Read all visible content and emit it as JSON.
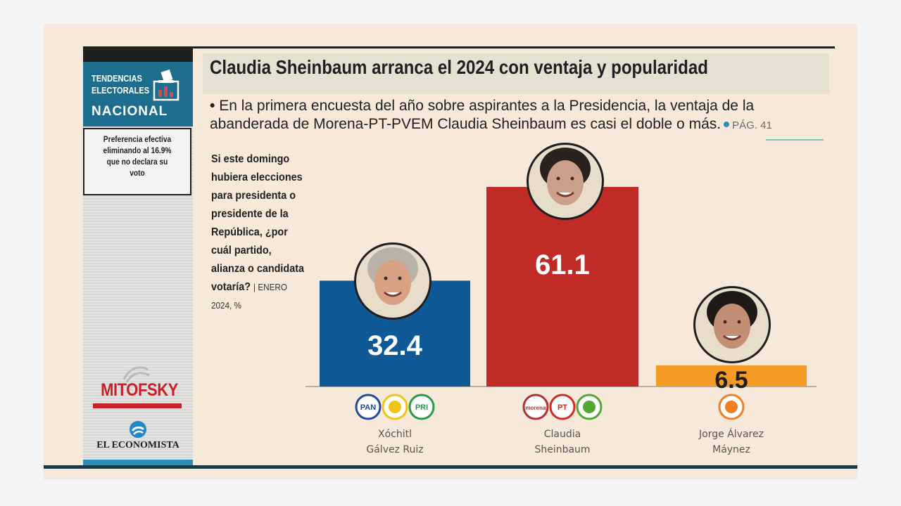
{
  "brand": {
    "line1": "TENDENCIAS",
    "line2": "ELECTORALES",
    "line3": "NACIONAL",
    "icon": "ballot-box-icon"
  },
  "note": {
    "line1": "Preferencia efectiva",
    "line2": "eliminando al 16.9%",
    "line3": "que no declara su",
    "line4": "voto"
  },
  "pollster": "MITOFSKY",
  "publisher": "EL ECONOMISTA",
  "headline": "Claudia Sheinbaum arranca el 2024 con ventaja y popularidad",
  "lede": {
    "bullet": "•",
    "line1": "En la primera encuesta del año sobre aspirantes a la Presidencia, la ventaja de la",
    "line2": "abanderada de Morena-PT-PVEM Claudia Sheinbaum es casi el doble o más.",
    "page_ref": "PÁG. 41"
  },
  "question": {
    "text": "Si este domingo hubiera elecciones para presidenta o presidente de la República, ¿por cuál partido, alianza o candidata votaría?",
    "sub": "| ENERO 2024, %"
  },
  "colors": {
    "xochitl": "#0f5a96",
    "claudia": "#c02b25",
    "jorge": "#f39b25",
    "accent": "#1d6e8e"
  },
  "chart_data": {
    "type": "bar",
    "categories": [
      "Xóchitl Gálvez Ruiz",
      "Claudia Sheinbaum",
      "Jorge Álvarez Máynez"
    ],
    "values": [
      32.4,
      61.1,
      6.5
    ],
    "labels": [
      "32.4",
      "61.1",
      "6.5"
    ],
    "name_lines": [
      [
        "Xóchitl",
        "Gálvez Ruiz"
      ],
      [
        "Claudia",
        "Sheinbaum"
      ],
      [
        "Jorge Álvarez",
        "Máynez"
      ]
    ],
    "parties": [
      [
        "PAN",
        "PRD",
        "PRI"
      ],
      [
        "morena",
        "PT",
        "PVEM"
      ],
      [
        "MC"
      ]
    ],
    "title": "",
    "xlabel": "",
    "ylabel": "",
    "ylim": [
      0,
      70
    ],
    "grid": false,
    "legend": "none"
  }
}
